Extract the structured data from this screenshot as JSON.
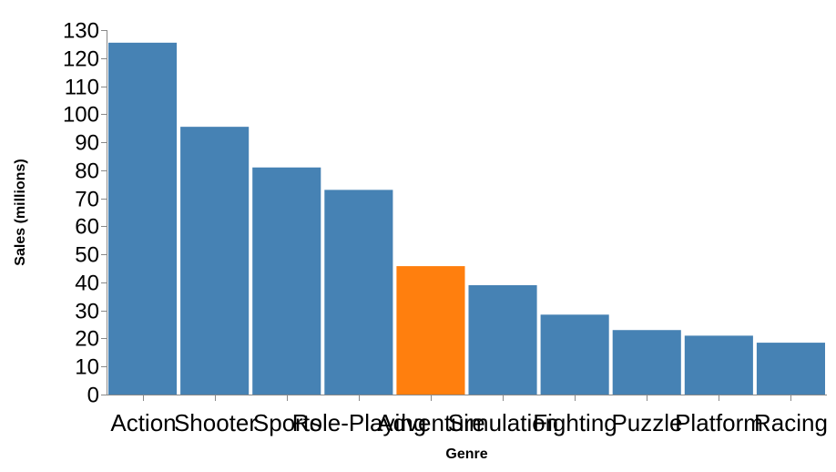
{
  "chart_data": {
    "type": "bar",
    "title": "",
    "xlabel": "Genre",
    "ylabel": "Sales (millions)",
    "ylim": [
      0,
      130
    ],
    "yticks": [
      0,
      10,
      20,
      30,
      40,
      50,
      60,
      70,
      80,
      90,
      100,
      110,
      120,
      130
    ],
    "categories": [
      "Action",
      "Shooter",
      "Sports",
      "Role-Playing",
      "Adventure",
      "Simulation",
      "Fighting",
      "Puzzle",
      "Platform",
      "Racing"
    ],
    "values": [
      125.5,
      95.5,
      81,
      73,
      45.8,
      39,
      28.5,
      23,
      21,
      18.5
    ],
    "highlight_index": 4,
    "grid": false,
    "legend": "none"
  },
  "colors": {
    "bar": "#4682b4",
    "highlight": "#ff7f0e",
    "axis": "#888888"
  }
}
